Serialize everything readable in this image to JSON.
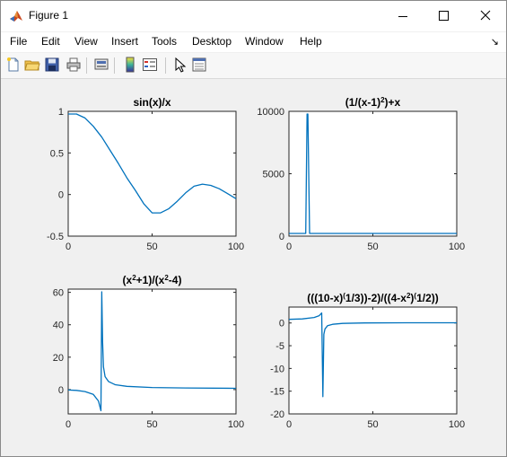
{
  "window": {
    "title": "Figure 1",
    "buttons": [
      "minimize-icon",
      "maximize-icon",
      "close-icon"
    ]
  },
  "menu": [
    "File",
    "Edit",
    "View",
    "Insert",
    "Tools",
    "Desktop",
    "Window",
    "Help"
  ],
  "toolbar": [
    "new-figure-icon",
    "open-file-icon",
    "save-icon",
    "print-icon",
    "print-preview-icon",
    "colorbar-icon",
    "legend-icon",
    "edit-plot-icon",
    "property-inspector-icon"
  ],
  "colors": {
    "line": "#0072BD",
    "axes_bg": "#ffffff",
    "figure_bg": "#f0f0f0"
  },
  "chart_data": [
    {
      "type": "line",
      "title": "sin(x)/x",
      "title_parts": [
        {
          "t": "sin(x)/x"
        }
      ],
      "xlim": [
        0,
        100
      ],
      "ylim": [
        -0.5,
        1
      ],
      "xticks": [
        0,
        50,
        100
      ],
      "yticks": [
        -0.5,
        0,
        0.5,
        1
      ],
      "ytick_labels": [
        "-0.5",
        "0",
        "0.5",
        "1"
      ],
      "x": [
        0,
        5,
        10,
        15,
        20,
        25,
        30,
        35,
        40,
        45,
        50,
        55,
        60,
        65,
        70,
        75,
        80,
        85,
        90,
        95,
        100
      ],
      "y": [
        1.0,
        0.98,
        0.92,
        0.82,
        0.69,
        0.53,
        0.37,
        0.2,
        0.05,
        -0.11,
        -0.22,
        -0.22,
        -0.17,
        -0.08,
        0.02,
        0.1,
        0.125,
        0.11,
        0.07,
        0.01,
        -0.05
      ]
    },
    {
      "type": "line",
      "title": "(1/(x-1)2)+x",
      "title_parts": [
        {
          "t": "(1/(x-1)"
        },
        {
          "t": "2",
          "sup": true
        },
        {
          "t": ")+x"
        }
      ],
      "xlim": [
        0,
        100
      ],
      "ylim": [
        0,
        10000
      ],
      "xticks": [
        0,
        50,
        100
      ],
      "yticks": [
        0,
        5000,
        10000
      ],
      "ytick_labels": [
        "0",
        "5000",
        "10000"
      ],
      "x": [
        0,
        10,
        10.8,
        11.3,
        12.3,
        100
      ],
      "y": [
        0,
        5,
        9900,
        9900,
        5,
        105
      ]
    },
    {
      "type": "line",
      "title": "(x2+1)/(x2-4)",
      "title_parts": [
        {
          "t": "(x"
        },
        {
          "t": "2",
          "sup": true
        },
        {
          "t": "+1)/(x"
        },
        {
          "t": "2",
          "sup": true
        },
        {
          "t": "-4)"
        }
      ],
      "xlim": [
        0,
        100
      ],
      "ylim": [
        -15,
        62
      ],
      "xticks": [
        0,
        50,
        100
      ],
      "yticks": [
        0,
        20,
        40,
        60
      ],
      "ytick_labels": [
        "0",
        "20",
        "40",
        "60"
      ],
      "x": [
        0,
        5,
        10,
        15,
        18,
        19.5,
        20,
        20.5,
        21,
        22,
        24,
        28,
        35,
        50,
        70,
        100
      ],
      "y": [
        -0.25,
        -0.5,
        -1.2,
        -3,
        -7,
        -13,
        62,
        30,
        14,
        8,
        5,
        3,
        2,
        1.3,
        1,
        0.8
      ]
    },
    {
      "type": "line",
      "title": "(((10-x)(1/3))-2)/((4-x2)(1/2))",
      "title_parts": [
        {
          "t": "(((10-x)"
        },
        {
          "t": "(",
          "sup": true
        },
        {
          "t": "1/3))-2)/((4-x"
        },
        {
          "t": "2",
          "sup": true
        },
        {
          "t": ")"
        },
        {
          "t": "(",
          "sup": true
        },
        {
          "t": "1/2))"
        }
      ],
      "xlim": [
        0,
        100
      ],
      "ylim": [
        -20,
        3.5
      ],
      "xticks": [
        0,
        50,
        100
      ],
      "yticks": [
        -20,
        -15,
        -10,
        -5,
        0
      ],
      "ytick_labels": [
        "-20",
        "-15",
        "-10",
        "-5",
        "0"
      ],
      "x": [
        0,
        8,
        15,
        18,
        19.5,
        20.2,
        20.8,
        21.5,
        23,
        26,
        32,
        45,
        70,
        100
      ],
      "y": [
        0.8,
        0.9,
        1.2,
        1.6,
        2.2,
        -16.2,
        -2.5,
        -1.3,
        -0.6,
        -0.3,
        -0.1,
        0,
        0.05,
        0.05
      ]
    }
  ]
}
